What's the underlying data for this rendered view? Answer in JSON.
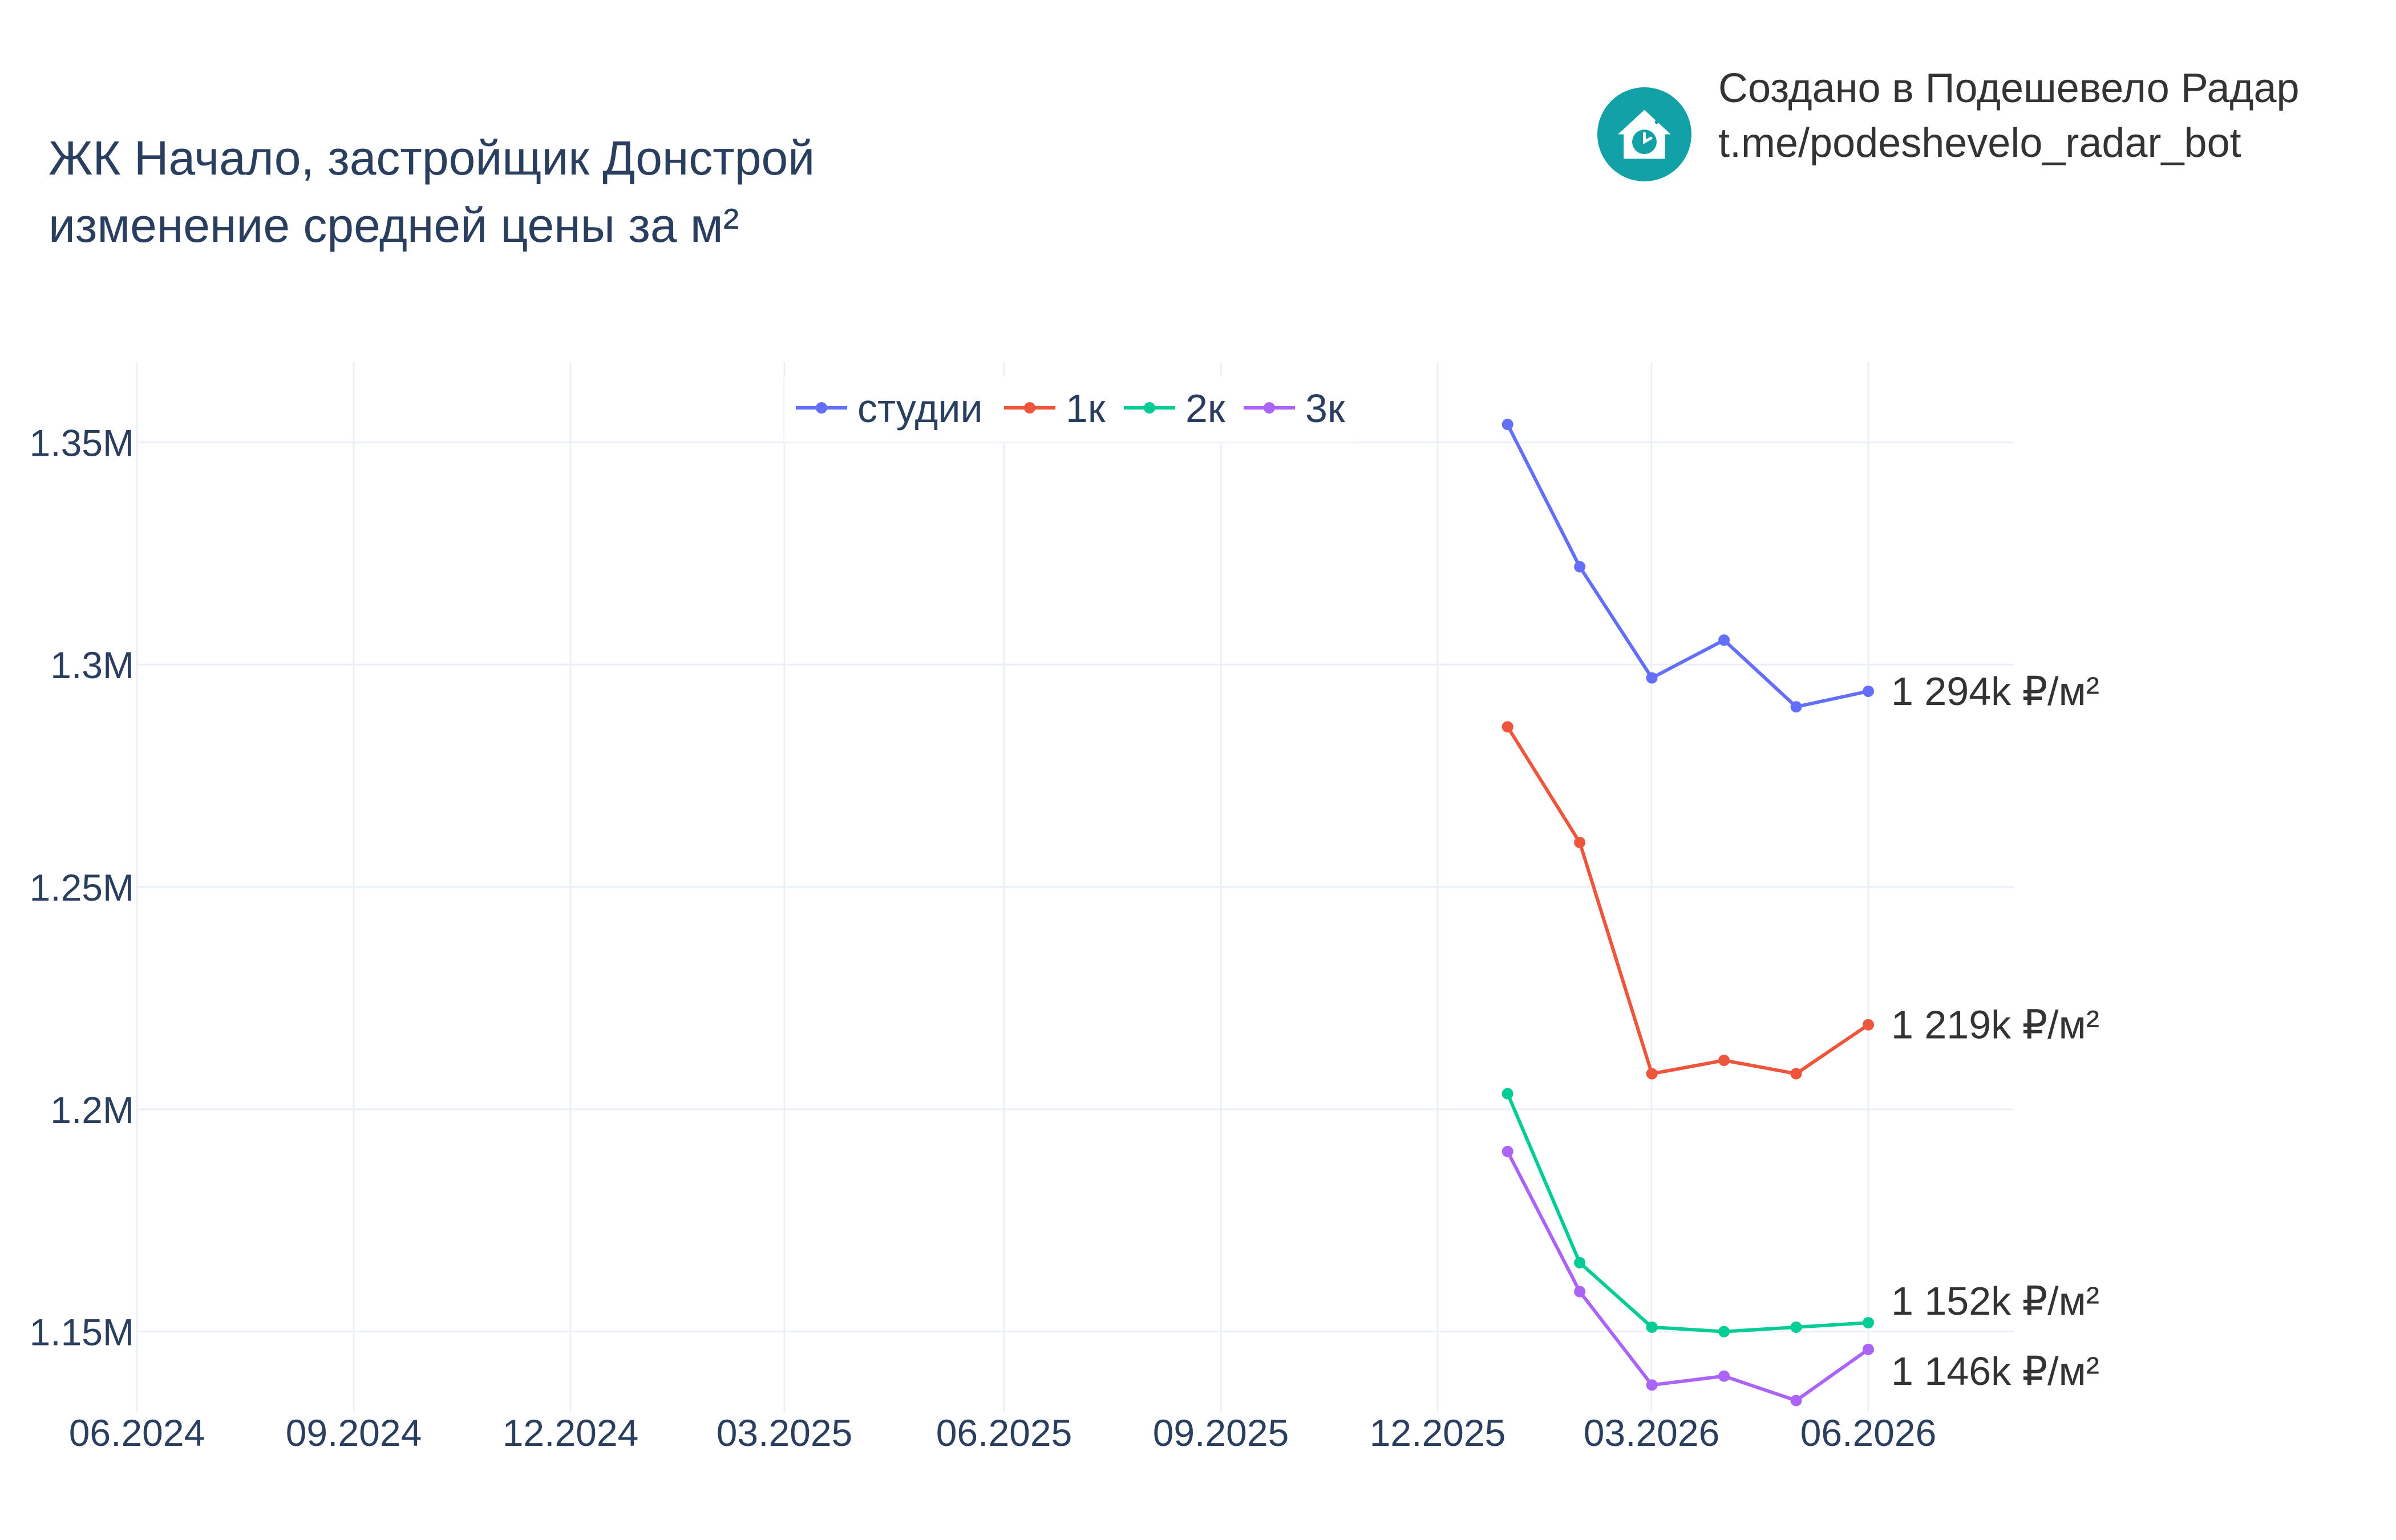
{
  "title": {
    "line1": "ЖК Начало, застройщик Донстрой",
    "line2": "изменение средней цены за м²"
  },
  "brand": {
    "line1": "Создано в Подешевело Радар",
    "line2": "t.me/podeshevelo_radar_bot",
    "logo_icon": "house-clock-icon",
    "logo_color": "#12a1a6"
  },
  "chart_data": {
    "type": "line",
    "x_ticks": [
      "06.2024",
      "09.2024",
      "12.2024",
      "03.2025",
      "06.2025",
      "09.2025",
      "12.2025",
      "03.2026",
      "06.2026"
    ],
    "y_ticks": [
      {
        "value": 1150000,
        "label": "1.15M"
      },
      {
        "value": 1200000,
        "label": "1.2M"
      },
      {
        "value": 1250000,
        "label": "1.25M"
      },
      {
        "value": 1300000,
        "label": "1.3M"
      },
      {
        "value": 1350000,
        "label": "1.35M"
      }
    ],
    "xlim": [
      "2024-06-01",
      "2026-06-01"
    ],
    "ylim": [
      1132000,
      1368000
    ],
    "grid": true,
    "legend_position": "top-center",
    "x": [
      "2026-01-01",
      "2026-02-01",
      "2026-03-01",
      "2026-04-01",
      "2026-05-01",
      "2026-06-01"
    ],
    "series": [
      {
        "name": "студии",
        "color": "#636efa",
        "values": [
          1354000,
          1322000,
          1297000,
          1305500,
          1290500,
          1294000
        ],
        "end_label": "1 294k ₽/м²"
      },
      {
        "name": "1к",
        "color": "#ef553b",
        "values": [
          1286000,
          1260000,
          1208000,
          1211000,
          1208000,
          1219000
        ],
        "end_label": "1 219k ₽/м²"
      },
      {
        "name": "2к",
        "color": "#00cc96",
        "values": [
          1203500,
          1165500,
          1151000,
          1150000,
          1151000,
          1152000
        ],
        "end_label": "1 152k ₽/м²"
      },
      {
        "name": "3к",
        "color": "#ab63fa",
        "values": [
          1190500,
          1159000,
          1138000,
          1140000,
          1134500,
          1146000
        ],
        "end_label": "1 146k ₽/м²"
      }
    ]
  }
}
